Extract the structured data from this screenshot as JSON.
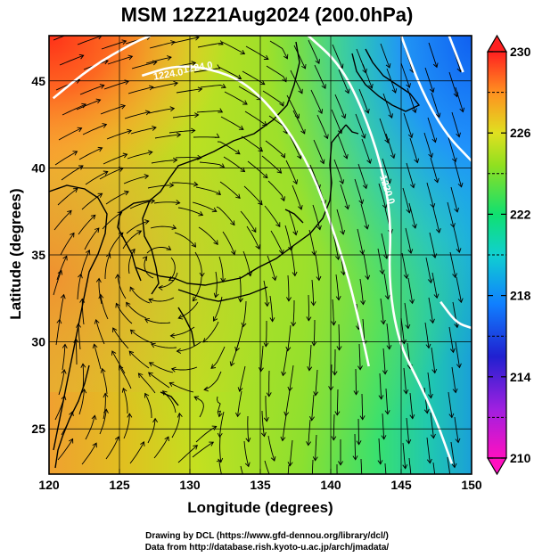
{
  "title": "MSM 12Z21Aug2024 (200.0hPa)",
  "xlabel": "Longitude (degrees)",
  "ylabel": "Latitude  (degrees)",
  "credits": [
    "Drawing by DCL (https://www.gfd-dennou.org/library/dcl/)",
    "Data from http://database.rish.kyoto-u.ac.jp/arch/jmadata/"
  ],
  "chart_data": {
    "type": "heatmap",
    "xlim": [
      120,
      150
    ],
    "ylim": [
      22.4,
      47.6
    ],
    "xticks": [
      "120",
      "125",
      "130",
      "135",
      "140",
      "145",
      "150"
    ],
    "yticks": [
      "25",
      "30",
      "35",
      "40",
      "45"
    ],
    "grid": true,
    "colorbar": {
      "min": 210,
      "max": 230,
      "tick_labels": [
        "230",
        "226",
        "222",
        "218",
        "214",
        "210"
      ],
      "colors": [
        "#ff10c0",
        "#2020d0",
        "#10b0ff",
        "#10e070",
        "#d0e020",
        "#ff8020",
        "#ff2020"
      ]
    },
    "contours": [
      {
        "label": "1224.0",
        "label_at": [
          128.5,
          45.2
        ],
        "points": [
          [
            120.3,
            44.0
          ],
          [
            123,
            45.8
          ],
          [
            126,
            47.2
          ],
          [
            127.2,
            47.6
          ]
        ]
      },
      {
        "label": "1224.0",
        "label_at": [
          130.6,
          45.6
        ],
        "points": [
          [
            126.6,
            45.3
          ],
          [
            129,
            45.9
          ],
          [
            131.5,
            45.7
          ],
          [
            134,
            44.9
          ],
          [
            136.5,
            42.8
          ],
          [
            138.7,
            39.8
          ],
          [
            140.1,
            36.6
          ],
          [
            141.3,
            33.6
          ],
          [
            142.2,
            30.5
          ],
          [
            142.7,
            28.6
          ]
        ]
      },
      {
        "label": "1220.0",
        "label_at": [
          143.8,
          38.7
        ],
        "points": [
          [
            138.4,
            47.6
          ],
          [
            140.6,
            46.0
          ],
          [
            142.2,
            43.5
          ],
          [
            143.6,
            40.2
          ],
          [
            144.3,
            37.0
          ],
          [
            144.1,
            33.5
          ],
          [
            144.8,
            30.0
          ],
          [
            146.2,
            27.8
          ],
          [
            147.5,
            25.5
          ],
          [
            148.6,
            23.0
          ]
        ]
      },
      {
        "label": "",
        "label_at": [
          0,
          0
        ],
        "points": [
          [
            145.0,
            47.6
          ],
          [
            146.4,
            44.5
          ],
          [
            148.1,
            42.0
          ],
          [
            150.0,
            40.4
          ]
        ]
      },
      {
        "label": "",
        "label_at": [
          0,
          0
        ],
        "points": [
          [
            148.4,
            47.6
          ],
          [
            149.4,
            45.5
          ]
        ]
      },
      {
        "label": "",
        "label_at": [
          0,
          0
        ],
        "points": [
          [
            147.8,
            32.3
          ],
          [
            148.9,
            31.1
          ],
          [
            150.0,
            30.8
          ]
        ]
      }
    ],
    "vortex_center": [
      127.8,
      34.4
    ],
    "field_description_colors": {
      "north_west_corner": "#ff4020",
      "west_band": "#ffa030",
      "center": "#b0e020",
      "east": "#30e070",
      "north_east": "#2080ff"
    }
  }
}
